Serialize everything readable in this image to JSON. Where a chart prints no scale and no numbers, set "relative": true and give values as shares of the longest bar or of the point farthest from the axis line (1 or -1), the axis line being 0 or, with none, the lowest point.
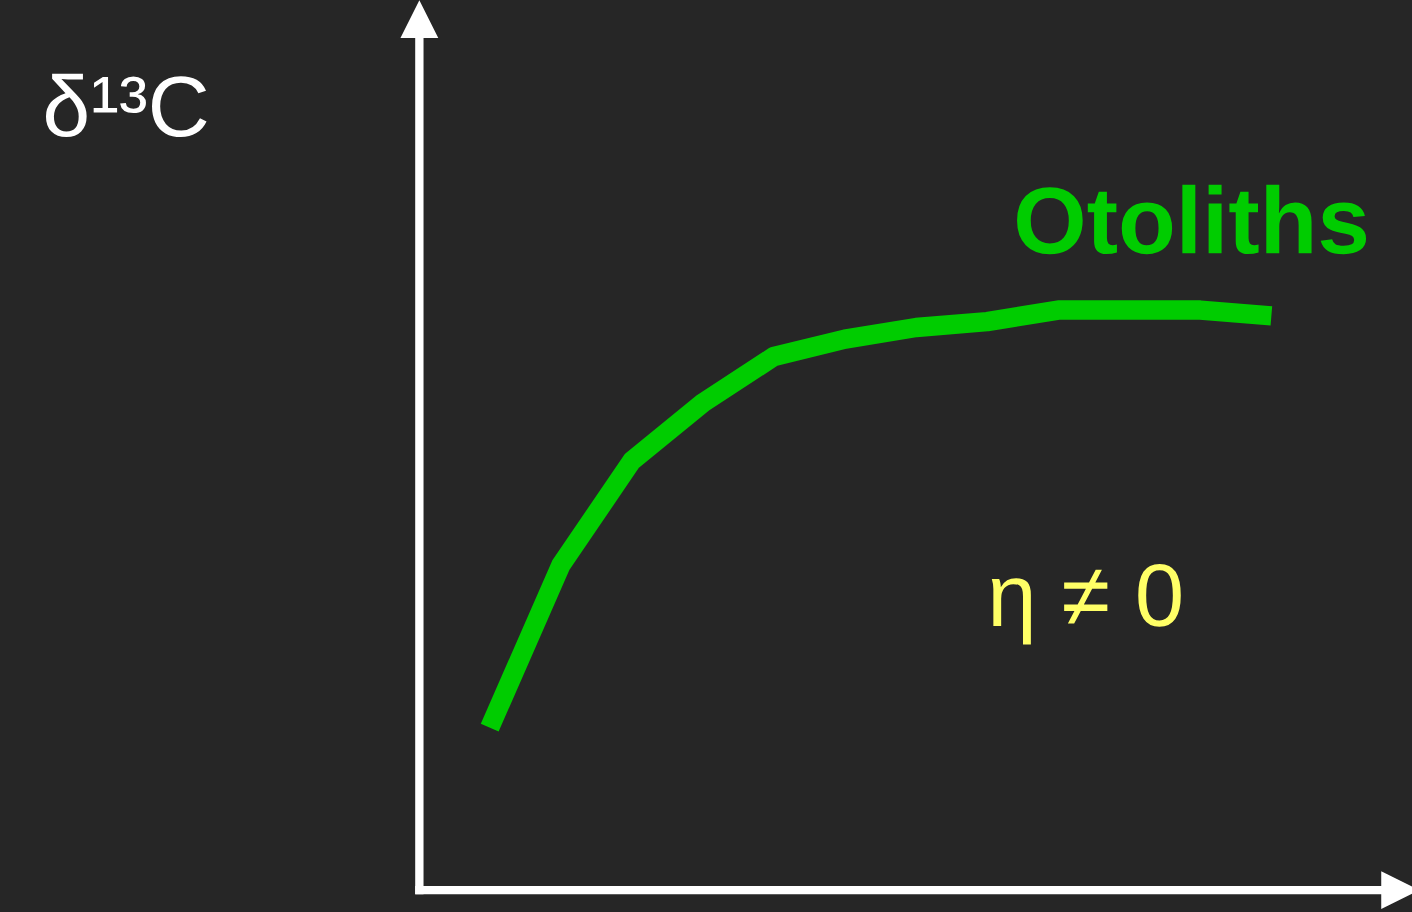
{
  "chart_data": {
    "type": "line",
    "relative": true,
    "ylabel": "δ¹³C",
    "categories": [
      null,
      null,
      null,
      null,
      null,
      null,
      null,
      null,
      null,
      null,
      null,
      null
    ],
    "series": [
      {
        "name": "Otoliths",
        "color": "#00cc00",
        "values": [
          0.28,
          0.56,
          0.74,
          0.84,
          0.92,
          0.95,
          0.97,
          0.98,
          1,
          1,
          1,
          0.99
        ]
      }
    ],
    "annotations": [
      "η ≠ 0"
    ]
  }
}
